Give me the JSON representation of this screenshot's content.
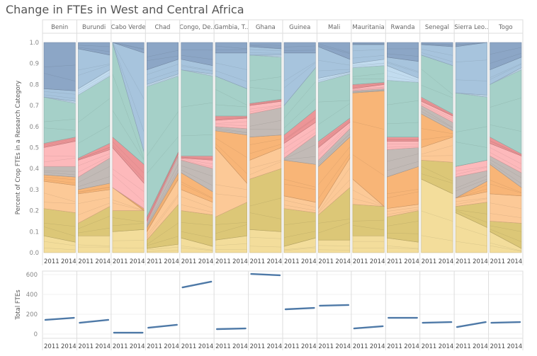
{
  "chart_data": [
    {
      "type": "area",
      "subtype": "stacked-100-percent-small-multiples",
      "title": "Change in FTEs in West and Central Africa",
      "ylabel": "Percent of Crop FTEs in a Research Category",
      "ylim": [
        0,
        1
      ],
      "yticks": [
        "0.0",
        "0.1",
        "0.2",
        "0.3",
        "0.4",
        "0.5",
        "0.6",
        "0.7",
        "0.8",
        "0.9",
        "1.0"
      ],
      "x": [
        "2011",
        "2014"
      ],
      "category_groups": [
        {
          "name": "yellow-light",
          "color": "#f3dd9b"
        },
        {
          "name": "olive",
          "color": "#dcc777"
        },
        {
          "name": "orange-light",
          "color": "#fcc997"
        },
        {
          "name": "orange",
          "color": "#f8b577"
        },
        {
          "name": "gray",
          "color": "#c2bab6"
        },
        {
          "name": "pink",
          "color": "#fdb9bb"
        },
        {
          "name": "red",
          "color": "#ec9597"
        },
        {
          "name": "teal",
          "color": "#a5d0c8"
        },
        {
          "name": "pale-blue",
          "color": "#c2dcef"
        },
        {
          "name": "blue",
          "color": "#a7c4dd"
        },
        {
          "name": "dark-blue",
          "color": "#8ca6c6"
        }
      ],
      "panels": [
        {
          "country": "Benin",
          "tops_2011": [
            0.08,
            0.21,
            0.34,
            0.37,
            0.41,
            0.5,
            0.52,
            0.74,
            0.74,
            0.78
          ],
          "tops_2014": [
            0.05,
            0.19,
            0.32,
            0.36,
            0.41,
            0.53,
            0.55,
            0.71,
            0.72,
            0.77
          ]
        },
        {
          "country": "Burundi",
          "tops_2011": [
            0.08,
            0.14,
            0.28,
            0.3,
            0.36,
            0.44,
            0.45,
            0.75,
            0.78,
            0.97
          ],
          "tops_2014": [
            0.08,
            0.22,
            0.3,
            0.33,
            0.45,
            0.49,
            0.52,
            0.84,
            0.87,
            0.94
          ]
        },
        {
          "country": "Cabo Verde",
          "tops_2011": [
            0.1,
            0.2,
            0.31,
            0.31,
            0.31,
            0.5,
            0.55,
            1.0,
            1.0,
            1.0
          ],
          "tops_2014": [
            0.11,
            0.2,
            0.2,
            0.21,
            0.21,
            0.33,
            0.42,
            0.48,
            0.48,
            0.95
          ]
        },
        {
          "country": "Chad",
          "tops_2011": [
            0.02,
            0.06,
            0.1,
            0.12,
            0.14,
            0.15,
            0.17,
            0.79,
            0.8,
            0.87
          ],
          "tops_2014": [
            0.04,
            0.23,
            0.35,
            0.38,
            0.46,
            0.47,
            0.48,
            0.84,
            0.85,
            0.92
          ]
        },
        {
          "country": "Congo, De..",
          "tops_2011": [
            0.07,
            0.2,
            0.3,
            0.38,
            0.44,
            0.45,
            0.46,
            0.87,
            0.87,
            0.92
          ],
          "tops_2014": [
            0.03,
            0.18,
            0.24,
            0.29,
            0.4,
            0.44,
            0.46,
            0.84,
            0.85,
            0.89
          ]
        },
        {
          "country": "Gambia, T..",
          "tops_2011": [
            0.06,
            0.17,
            0.5,
            0.58,
            0.6,
            0.63,
            0.65,
            0.84,
            0.84,
            0.95
          ],
          "tops_2014": [
            0.08,
            0.24,
            0.33,
            0.56,
            0.59,
            0.64,
            0.65,
            0.78,
            0.78,
            0.95
          ]
        },
        {
          "country": "Ghana",
          "tops_2011": [
            0.11,
            0.35,
            0.44,
            0.55,
            0.66,
            0.7,
            0.71,
            0.94,
            0.94,
            0.98
          ],
          "tops_2014": [
            0.1,
            0.4,
            0.5,
            0.56,
            0.69,
            0.72,
            0.73,
            0.93,
            0.94,
            0.97
          ]
        },
        {
          "country": "Guinea",
          "tops_2011": [
            0.03,
            0.21,
            0.27,
            0.44,
            0.45,
            0.52,
            0.56,
            0.7,
            0.7,
            0.95
          ],
          "tops_2014": [
            0.07,
            0.19,
            0.24,
            0.42,
            0.56,
            0.62,
            0.68,
            0.88,
            0.88,
            0.95
          ]
        },
        {
          "country": "Mali",
          "tops_2011": [
            0.06,
            0.18,
            0.21,
            0.41,
            0.44,
            0.5,
            0.53,
            0.81,
            0.83,
            0.98
          ],
          "tops_2014": [
            0.06,
            0.31,
            0.45,
            0.55,
            0.59,
            0.62,
            0.64,
            0.85,
            0.86,
            0.92
          ]
        },
        {
          "country": "Mauritania",
          "tops_2011": [
            0.08,
            0.23,
            0.35,
            0.76,
            0.77,
            0.78,
            0.8,
            0.88,
            0.9,
            0.99
          ],
          "tops_2014": [
            0.08,
            0.22,
            0.18,
            0.77,
            0.78,
            0.8,
            0.81,
            0.89,
            0.92,
            0.99
          ]
        },
        {
          "country": "Rwanda",
          "tops_2011": [
            0.07,
            0.17,
            0.21,
            0.36,
            0.49,
            0.53,
            0.55,
            0.82,
            0.89,
            0.93
          ],
          "tops_2014": [
            0.05,
            0.2,
            0.23,
            0.41,
            0.5,
            0.53,
            0.55,
            0.81,
            0.83,
            0.91
          ]
        },
        {
          "country": "Senegal",
          "tops_2011": [
            0.35,
            0.44,
            0.5,
            0.66,
            0.7,
            0.72,
            0.74,
            0.94,
            0.94,
            0.99
          ],
          "tops_2014": [
            0.28,
            0.43,
            0.55,
            0.58,
            0.62,
            0.65,
            0.66,
            0.89,
            0.89,
            0.98
          ]
        },
        {
          "country": "Sierra Leo..",
          "tops_2011": [
            0.19,
            0.22,
            0.26,
            0.26,
            0.36,
            0.41,
            0.41,
            0.76,
            0.76,
            0.98
          ],
          "tops_2014": [
            0.12,
            0.24,
            0.29,
            0.34,
            0.39,
            0.44,
            0.44,
            0.74,
            0.75,
            1.0
          ]
        },
        {
          "country": "Togo",
          "tops_2011": [
            0.1,
            0.15,
            0.28,
            0.42,
            0.46,
            0.52,
            0.55,
            0.8,
            0.8,
            0.87
          ],
          "tops_2014": [
            0.02,
            0.14,
            0.27,
            0.31,
            0.38,
            0.46,
            0.47,
            0.87,
            0.88,
            0.93
          ]
        }
      ]
    },
    {
      "type": "line",
      "ylabel": "Total FTEs",
      "ylim": [
        0,
        650
      ],
      "yticks": [
        "0",
        "200",
        "400",
        "600"
      ],
      "x": [
        "2011",
        "2014"
      ],
      "color": "#4e79a7",
      "series": [
        {
          "name": "Benin",
          "values": [
            143,
            164
          ]
        },
        {
          "name": "Burundi",
          "values": [
            114,
            143
          ]
        },
        {
          "name": "Cabo Verde",
          "values": [
            14,
            14
          ]
        },
        {
          "name": "Chad",
          "values": [
            64,
            93
          ]
        },
        {
          "name": "Congo, De..",
          "values": [
            471,
            529
          ]
        },
        {
          "name": "Gambia, T..",
          "values": [
            50,
            57
          ]
        },
        {
          "name": "Ghana",
          "values": [
            607,
            593
          ]
        },
        {
          "name": "Guinea",
          "values": [
            250,
            264
          ]
        },
        {
          "name": "Mali",
          "values": [
            286,
            293
          ]
        },
        {
          "name": "Mauritania",
          "values": [
            57,
            79
          ]
        },
        {
          "name": "Rwanda",
          "values": [
            164,
            164
          ]
        },
        {
          "name": "Senegal",
          "values": [
            114,
            121
          ]
        },
        {
          "name": "Sierra Leo..",
          "values": [
            71,
            121
          ]
        },
        {
          "name": "Togo",
          "values": [
            114,
            121
          ]
        }
      ]
    }
  ],
  "title": "Change in FTEs in West and Central Africa"
}
